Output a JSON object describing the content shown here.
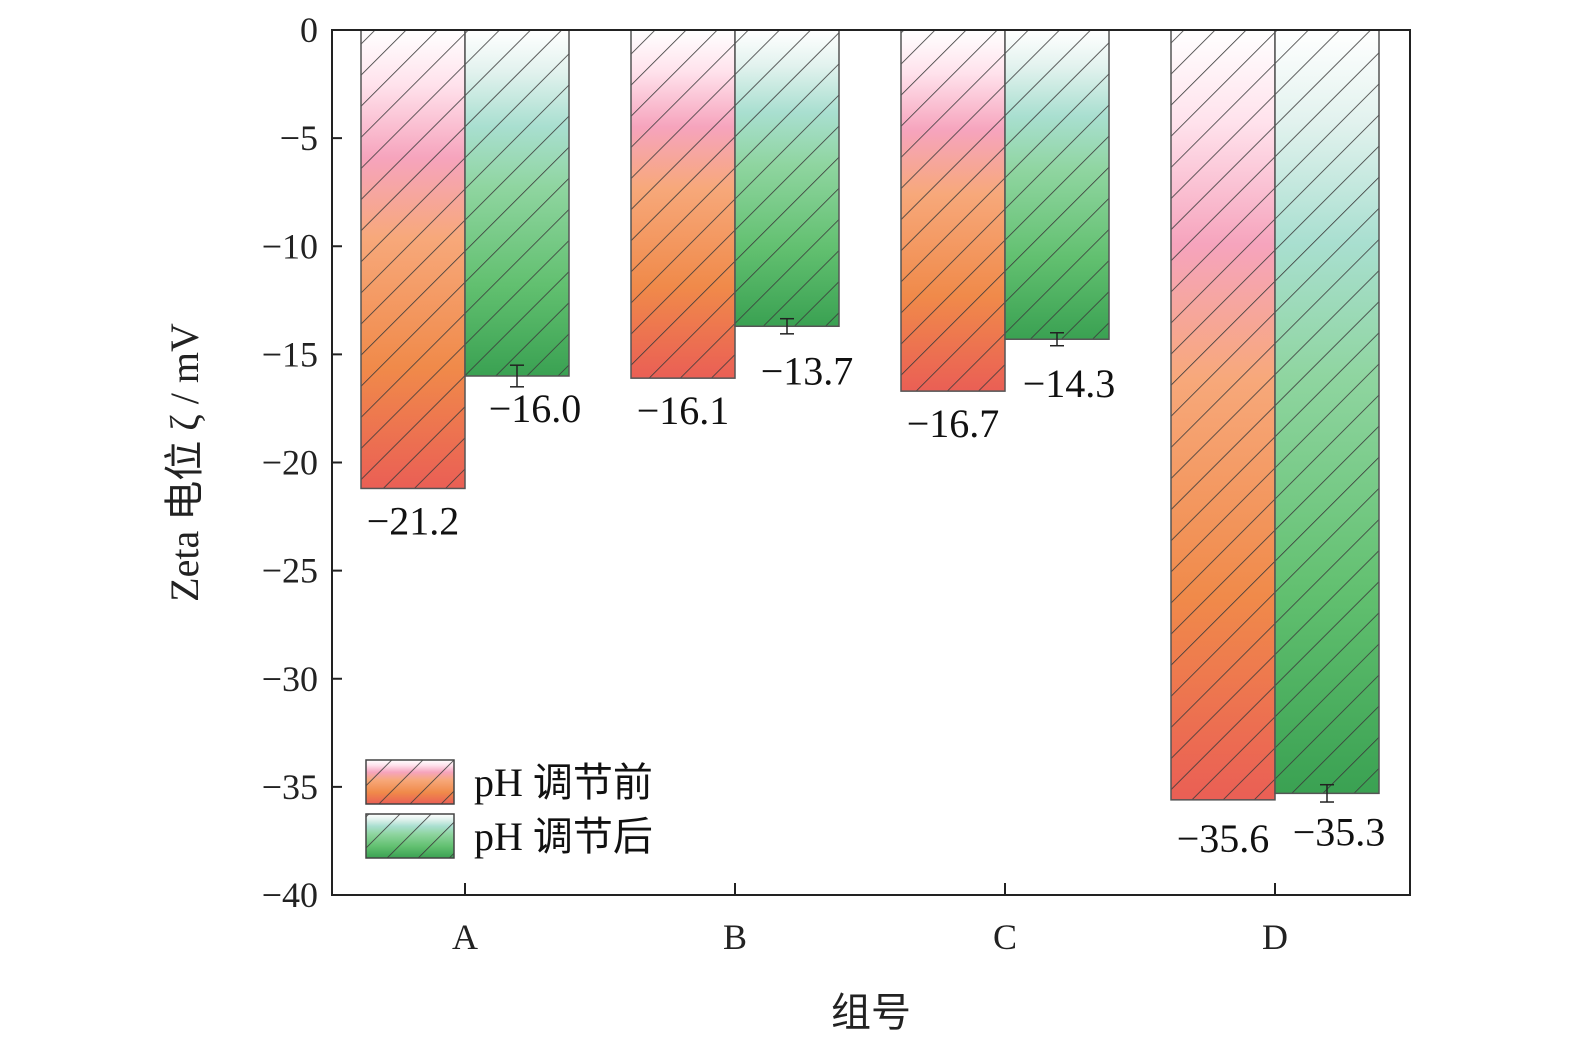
{
  "chart_data": {
    "type": "bar",
    "categories": [
      "A",
      "B",
      "C",
      "D"
    ],
    "series": [
      {
        "name": "pH 调节前",
        "values": [
          -21.2,
          -16.1,
          -16.7,
          -35.6
        ],
        "labels": [
          "−21.2",
          "−16.1",
          "−16.7",
          "−35.6"
        ],
        "error": [
          0,
          0,
          0,
          0
        ],
        "gradient": [
          "#ffe2ec",
          "#f6a4bd",
          "#f7a87a",
          "#f08a4a",
          "#ea5f55"
        ]
      },
      {
        "name": "pH 调节后",
        "values": [
          -16.0,
          -13.7,
          -14.3,
          -35.3
        ],
        "labels": [
          "−16.0",
          "−13.7",
          "−14.3",
          "−35.3"
        ],
        "error": [
          0.5,
          0.35,
          0.3,
          0.4
        ],
        "gradient": [
          "#e2f2ee",
          "#a9dfd0",
          "#8fd5a0",
          "#62c070",
          "#3aa152"
        ]
      }
    ],
    "xlabel": "组号",
    "ylabel": "Zeta 电位 ζ / mV",
    "ylim": [
      -40,
      0
    ],
    "yticks": [
      0,
      -5,
      -10,
      -15,
      -20,
      -25,
      -30,
      -35,
      -40
    ],
    "ytick_labels": [
      "0",
      "−5",
      "−10",
      "−15",
      "−20",
      "−25",
      "−30",
      "−35",
      "−40"
    ],
    "hatch": "diagonal",
    "legend_position": "bottom-left",
    "grid": false
  }
}
